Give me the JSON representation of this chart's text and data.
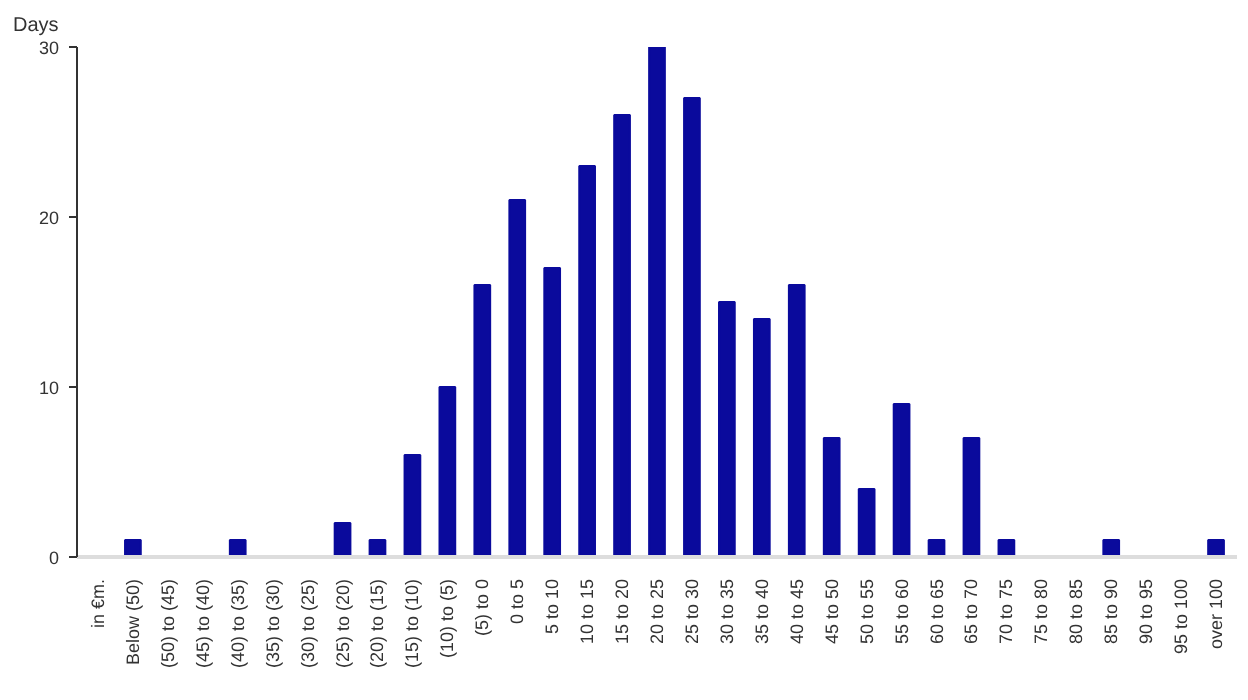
{
  "chart_data": {
    "type": "bar",
    "ylabel": "Days",
    "annotations": [
      "in €m."
    ],
    "categories": [
      "Below (50)",
      "(50) to (45)",
      "(45) to (40)",
      "(40) to (35)",
      "(35) to (30)",
      "(30) to (25)",
      "(25) to (20)",
      "(20) to (15)",
      "(15) to (10)",
      "(10) to (5)",
      "(5) to 0",
      "0 to 5",
      "5 to 10",
      "10 to 15",
      "15 to 20",
      "20 to 25",
      "25 to 30",
      "30 to 35",
      "35 to 40",
      "40 to 45",
      "45 to 50",
      "50 to 55",
      "55 to 60",
      "60 to 65",
      "65 to 70",
      "70 to 75",
      "75 to 80",
      "80 to 85",
      "85 to 90",
      "90 to 95",
      "95 to 100",
      "over 100"
    ],
    "values": [
      1,
      0,
      0,
      1,
      0,
      0,
      2,
      1,
      6,
      10,
      16,
      21,
      17,
      23,
      26,
      30,
      27,
      15,
      14,
      16,
      7,
      4,
      9,
      1,
      7,
      1,
      0,
      0,
      1,
      0,
      0,
      1
    ],
    "color": "#0a0a9c",
    "ylim": [
      0,
      30
    ],
    "yticks": [
      0,
      10,
      20,
      30
    ],
    "grid": false
  }
}
